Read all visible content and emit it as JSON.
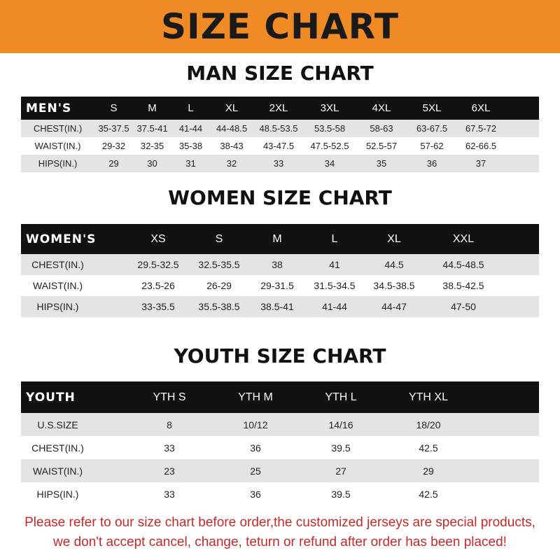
{
  "banner": {
    "title": "SIZE CHART"
  },
  "men": {
    "title": "MAN SIZE CHART",
    "header": [
      "MEN'S",
      "S",
      "M",
      "L",
      "XL",
      "2XL",
      "3XL",
      "4XL",
      "5XL",
      "6XL"
    ],
    "rows": [
      [
        "CHEST(IN.)",
        "35-37.5",
        "37.5-41",
        "41-44",
        "44-48.5",
        "48.5-53.5",
        "53.5-58",
        "58-63",
        "63-67.5",
        "67.5-72"
      ],
      [
        "WAIST(IN.)",
        "29-32",
        "32-35",
        "35-38",
        "38-43",
        "43-47.5",
        "47.5-52.5",
        "52.5-57",
        "57-62",
        "62-66.5"
      ],
      [
        "HIPS(IN.)",
        "29",
        "30",
        "31",
        "32",
        "33",
        "34",
        "35",
        "36",
        "37"
      ]
    ]
  },
  "women": {
    "title": "WOMEN SIZE CHART",
    "header": [
      "WOMEN'S",
      "XS",
      "S",
      "M",
      "L",
      "XL",
      "XXL"
    ],
    "rows": [
      [
        "CHEST(IN.)",
        "29.5-32.5",
        "32.5-35.5",
        "38",
        "41",
        "44.5",
        "44.5-48.5"
      ],
      [
        "WAIST(IN.)",
        "23.5-26",
        "26-29",
        "29-31.5",
        "31.5-34.5",
        "34.5-38.5",
        "38.5-42.5"
      ],
      [
        "HIPS(IN.)",
        "33-35.5",
        "35.5-38.5",
        "38.5-41",
        "41-44",
        "44-47",
        "47-50"
      ]
    ]
  },
  "youth": {
    "title": "YOUTH SIZE CHART",
    "header": [
      "YOUTH",
      "YTH S",
      "YTH M",
      "YTH L",
      "YTH XL"
    ],
    "rows": [
      [
        "U.S.SIZE",
        "8",
        "10/12",
        "14/16",
        "18/20"
      ],
      [
        "CHEST(IN.)",
        "33",
        "36",
        "39.5",
        "42.5"
      ],
      [
        "WAIST(IN.)",
        "23",
        "25",
        "27",
        "29"
      ],
      [
        "HIPS(IN.)",
        "33",
        "36",
        "39.5",
        "42.5"
      ]
    ]
  },
  "notice": {
    "line1": "Please refer to our size chart before order,the customized jerseys are special products,",
    "line2": "we don't accept cancel, change, teturn or refund after order has been placed!"
  },
  "colors": {
    "banner": "#ef8a25",
    "header_row": "#111111",
    "stripe": "#e4e4e4",
    "notice": "#c42a2a"
  }
}
